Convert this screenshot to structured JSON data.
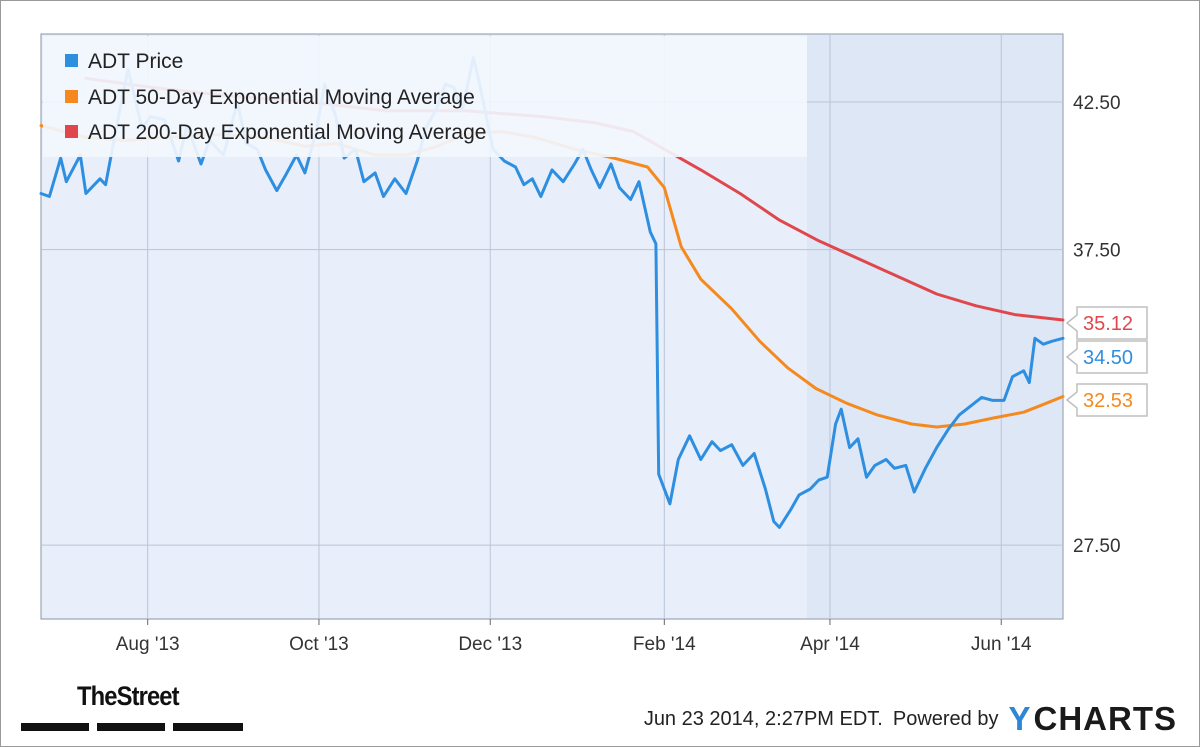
{
  "footer": {
    "timestamp": "Jun 23 2014, 2:27PM EDT.",
    "powered_by": "Powered by",
    "brand": "YCHARTS",
    "brand_y": "Y",
    "brand_rest": "CHARTS",
    "source_logo": "TheStreet"
  },
  "colors": {
    "plot_bg": "#e8effb",
    "legend_bg": "#f2f6fd",
    "price": "#2e8ee0",
    "ema50": "#f5891e",
    "ema200": "#e0474c",
    "grid": "#b8c4d6"
  },
  "chart_data": {
    "type": "line",
    "title": "",
    "xlabel": "",
    "ylabel": "",
    "x_ticks": [
      "Aug '13",
      "Oct '13",
      "Dec '13",
      "Feb '14",
      "Apr '14",
      "Jun '14"
    ],
    "y_ticks": [
      "42.50",
      "37.50",
      "27.50"
    ],
    "ylim": [
      25.0,
      44.8
    ],
    "xlim": [
      "2013-06-24",
      "2014-06-23"
    ],
    "grid": true,
    "legend_position": "top-left",
    "end_labels": [
      "35.12",
      "34.50",
      "32.53"
    ],
    "series": [
      {
        "name": "ADT Price",
        "color": "#2e8ee0",
        "final_value": 34.5,
        "points": [
          [
            "2013-06-24",
            39.4
          ],
          [
            "2013-06-27",
            39.3
          ],
          [
            "2013-07-01",
            40.6
          ],
          [
            "2013-07-03",
            39.8
          ],
          [
            "2013-07-08",
            40.7
          ],
          [
            "2013-07-10",
            39.4
          ],
          [
            "2013-07-15",
            39.9
          ],
          [
            "2013-07-17",
            39.7
          ],
          [
            "2013-07-22",
            42.2
          ],
          [
            "2013-07-25",
            43.6
          ],
          [
            "2013-07-30",
            41.6
          ],
          [
            "2013-08-02",
            42.0
          ],
          [
            "2013-08-07",
            41.9
          ],
          [
            "2013-08-12",
            40.5
          ],
          [
            "2013-08-15",
            41.7
          ],
          [
            "2013-08-20",
            40.4
          ],
          [
            "2013-08-23",
            41.2
          ],
          [
            "2013-08-28",
            40.7
          ],
          [
            "2013-09-02",
            42.5
          ],
          [
            "2013-09-05",
            41.1
          ],
          [
            "2013-09-09",
            40.9
          ],
          [
            "2013-09-12",
            40.2
          ],
          [
            "2013-09-16",
            39.5
          ],
          [
            "2013-09-19",
            40.0
          ],
          [
            "2013-09-23",
            40.7
          ],
          [
            "2013-09-26",
            40.1
          ],
          [
            "2013-09-30",
            41.5
          ],
          [
            "2013-10-03",
            43.1
          ],
          [
            "2013-10-07",
            42.0
          ],
          [
            "2013-10-10",
            40.6
          ],
          [
            "2013-10-14",
            40.9
          ],
          [
            "2013-10-17",
            39.8
          ],
          [
            "2013-10-21",
            40.1
          ],
          [
            "2013-10-24",
            39.3
          ],
          [
            "2013-10-28",
            39.9
          ],
          [
            "2013-11-01",
            39.4
          ],
          [
            "2013-11-05",
            40.5
          ],
          [
            "2013-11-08",
            41.6
          ],
          [
            "2013-11-12",
            42.3
          ],
          [
            "2013-11-15",
            43.1
          ],
          [
            "2013-11-18",
            43.0
          ],
          [
            "2013-11-21",
            42.2
          ],
          [
            "2013-11-25",
            44.0
          ],
          [
            "2013-11-27",
            43.2
          ],
          [
            "2013-12-02",
            40.9
          ],
          [
            "2013-12-06",
            40.5
          ],
          [
            "2013-12-10",
            40.3
          ],
          [
            "2013-12-13",
            39.7
          ],
          [
            "2013-12-16",
            39.9
          ],
          [
            "2013-12-19",
            39.3
          ],
          [
            "2013-12-23",
            40.2
          ],
          [
            "2013-12-27",
            39.8
          ],
          [
            "2013-12-31",
            40.4
          ],
          [
            "2014-01-03",
            40.9
          ],
          [
            "2014-01-06",
            40.2
          ],
          [
            "2014-01-09",
            39.6
          ],
          [
            "2014-01-13",
            40.4
          ],
          [
            "2014-01-16",
            39.6
          ],
          [
            "2014-01-20",
            39.2
          ],
          [
            "2014-01-23",
            39.8
          ],
          [
            "2014-01-27",
            38.1
          ],
          [
            "2014-01-29",
            37.7
          ],
          [
            "2014-01-30",
            29.9
          ],
          [
            "2014-02-03",
            28.9
          ],
          [
            "2014-02-06",
            30.4
          ],
          [
            "2014-02-10",
            31.2
          ],
          [
            "2014-02-14",
            30.4
          ],
          [
            "2014-02-18",
            31.0
          ],
          [
            "2014-02-21",
            30.7
          ],
          [
            "2014-02-25",
            30.9
          ],
          [
            "2014-03-01",
            30.2
          ],
          [
            "2014-03-05",
            30.6
          ],
          [
            "2014-03-09",
            29.4
          ],
          [
            "2014-03-12",
            28.3
          ],
          [
            "2014-03-14",
            28.1
          ],
          [
            "2014-03-18",
            28.7
          ],
          [
            "2014-03-21",
            29.2
          ],
          [
            "2014-03-25",
            29.4
          ],
          [
            "2014-03-28",
            29.7
          ],
          [
            "2014-03-31",
            29.8
          ],
          [
            "2014-04-03",
            31.6
          ],
          [
            "2014-04-05",
            32.1
          ],
          [
            "2014-04-08",
            30.8
          ],
          [
            "2014-04-11",
            31.1
          ],
          [
            "2014-04-14",
            29.8
          ],
          [
            "2014-04-17",
            30.2
          ],
          [
            "2014-04-21",
            30.4
          ],
          [
            "2014-04-24",
            30.1
          ],
          [
            "2014-04-28",
            30.2
          ],
          [
            "2014-05-01",
            29.3
          ],
          [
            "2014-05-05",
            30.1
          ],
          [
            "2014-05-09",
            30.8
          ],
          [
            "2014-05-13",
            31.4
          ],
          [
            "2014-05-17",
            31.9
          ],
          [
            "2014-05-21",
            32.2
          ],
          [
            "2014-05-25",
            32.5
          ],
          [
            "2014-05-29",
            32.4
          ],
          [
            "2014-06-02",
            32.4
          ],
          [
            "2014-06-05",
            33.2
          ],
          [
            "2014-06-09",
            33.4
          ],
          [
            "2014-06-11",
            33.0
          ],
          [
            "2014-06-13",
            34.5
          ],
          [
            "2014-06-16",
            34.3
          ],
          [
            "2014-06-19",
            34.4
          ],
          [
            "2014-06-23",
            34.5
          ]
        ]
      },
      {
        "name": "ADT 50-Day Exponential Moving Average",
        "color": "#f5891e",
        "final_value": 32.53,
        "points": [
          [
            "2013-06-24",
            41.7
          ],
          [
            "2013-07-10",
            41.3
          ],
          [
            "2013-07-24",
            41.2
          ],
          [
            "2013-08-07",
            41.3
          ],
          [
            "2013-08-25",
            41.4
          ],
          [
            "2013-09-12",
            41.3
          ],
          [
            "2013-09-26",
            41.0
          ],
          [
            "2013-10-07",
            41.1
          ],
          [
            "2013-10-21",
            40.7
          ],
          [
            "2013-11-01",
            40.7
          ],
          [
            "2013-11-12",
            41.0
          ],
          [
            "2013-11-22",
            41.4
          ],
          [
            "2013-12-05",
            41.5
          ],
          [
            "2013-12-17",
            41.3
          ],
          [
            "2013-12-31",
            40.9
          ],
          [
            "2014-01-14",
            40.6
          ],
          [
            "2014-01-26",
            40.3
          ],
          [
            "2014-02-01",
            39.6
          ],
          [
            "2014-02-07",
            37.6
          ],
          [
            "2014-02-14",
            36.5
          ],
          [
            "2014-02-25",
            35.5
          ],
          [
            "2014-03-07",
            34.4
          ],
          [
            "2014-03-17",
            33.5
          ],
          [
            "2014-03-27",
            32.8
          ],
          [
            "2014-04-07",
            32.3
          ],
          [
            "2014-04-18",
            31.9
          ],
          [
            "2014-04-30",
            31.6
          ],
          [
            "2014-05-09",
            31.5
          ],
          [
            "2014-05-19",
            31.6
          ],
          [
            "2014-05-29",
            31.8
          ],
          [
            "2014-06-09",
            32.0
          ],
          [
            "2014-06-17",
            32.3
          ],
          [
            "2014-06-23",
            32.53
          ]
        ]
      },
      {
        "name": "ADT 200-Day Exponential Moving Average",
        "color": "#e0474c",
        "final_value": 35.12,
        "points": [
          [
            "2013-07-10",
            43.3
          ],
          [
            "2013-08-02",
            43.0
          ],
          [
            "2013-08-30",
            42.7
          ],
          [
            "2013-09-27",
            42.5
          ],
          [
            "2013-10-25",
            42.2
          ],
          [
            "2013-11-22",
            42.2
          ],
          [
            "2013-12-20",
            42.0
          ],
          [
            "2014-01-07",
            41.8
          ],
          [
            "2014-01-21",
            41.5
          ],
          [
            "2014-02-01",
            40.9
          ],
          [
            "2014-02-14",
            40.2
          ],
          [
            "2014-02-28",
            39.4
          ],
          [
            "2014-03-14",
            38.5
          ],
          [
            "2014-03-28",
            37.8
          ],
          [
            "2014-04-11",
            37.2
          ],
          [
            "2014-04-25",
            36.6
          ],
          [
            "2014-05-09",
            36.0
          ],
          [
            "2014-05-23",
            35.6
          ],
          [
            "2014-06-06",
            35.3
          ],
          [
            "2014-06-23",
            35.12
          ]
        ]
      }
    ]
  }
}
